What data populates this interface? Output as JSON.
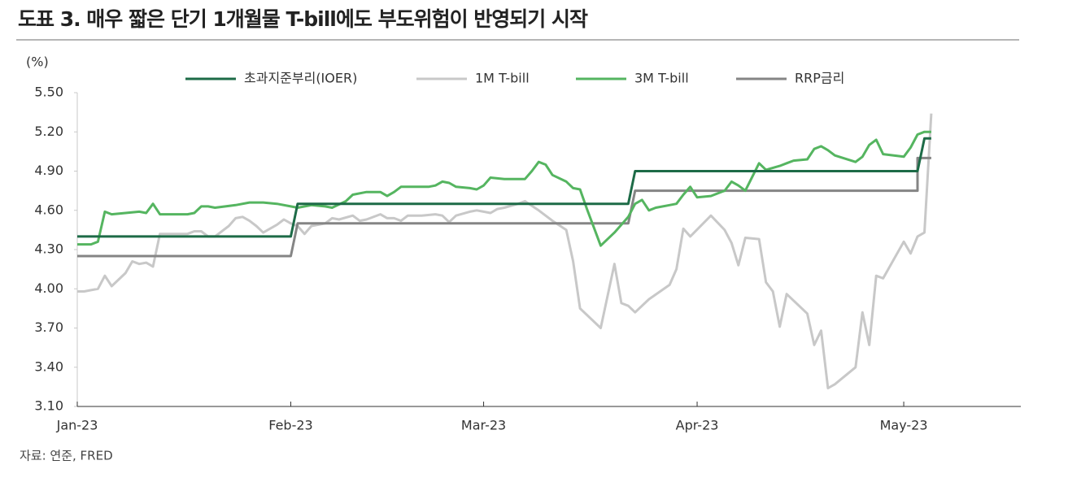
{
  "title": "도표 3. 매우 짧은 단기 1개월물 T-bill에도 부도위험이 반영되기 시작",
  "source": "자료: 연준, FRED",
  "chart_data": {
    "type": "line",
    "y_unit_label": "(%)",
    "xlim": [
      0,
      137
    ],
    "xticks": [
      {
        "value": 0,
        "label": "Jan-23"
      },
      {
        "value": 31,
        "label": "Feb-23"
      },
      {
        "value": 59,
        "label": "Mar-23"
      },
      {
        "value": 90,
        "label": "Apr-23"
      },
      {
        "value": 120,
        "label": "May-23"
      }
    ],
    "ylim": [
      3.1,
      5.5
    ],
    "yticks": [
      {
        "value": 3.1,
        "label": "3.10"
      },
      {
        "value": 3.4,
        "label": "3.40"
      },
      {
        "value": 3.7,
        "label": "3.70"
      },
      {
        "value": 4.0,
        "label": "4.00"
      },
      {
        "value": 4.3,
        "label": "4.30"
      },
      {
        "value": 4.6,
        "label": "4.60"
      },
      {
        "value": 4.9,
        "label": "4.90"
      },
      {
        "value": 5.2,
        "label": "5.20"
      },
      {
        "value": 5.5,
        "label": "5.50"
      }
    ],
    "series": [
      {
        "name": "초과지준부리(IOER)",
        "color": "#1d6b47",
        "x": [
          0,
          31,
          32,
          80,
          81,
          122,
          123,
          124
        ],
        "values": [
          4.4,
          4.4,
          4.65,
          4.65,
          4.9,
          4.9,
          5.15,
          5.15
        ]
      },
      {
        "name": "1M T-bill",
        "color": "#c8c8c8",
        "x": [
          0,
          1,
          2,
          3,
          4,
          5,
          7,
          8,
          9,
          10,
          11,
          12,
          14,
          16,
          17,
          18,
          19,
          20,
          22,
          23,
          24,
          25,
          26,
          27,
          29,
          30,
          31,
          32,
          33,
          34,
          36,
          37,
          38,
          40,
          41,
          42,
          44,
          45,
          46,
          47,
          48,
          50,
          52,
          53,
          54,
          55,
          57,
          58,
          59,
          60,
          61,
          62,
          64,
          65,
          67,
          69,
          71,
          72,
          73,
          76,
          78,
          79,
          80,
          81,
          83,
          86,
          87,
          88,
          89,
          92,
          94,
          95,
          96,
          97,
          99,
          100,
          101,
          102,
          103,
          106,
          107,
          108,
          109,
          110,
          113,
          114,
          115,
          116,
          117,
          120,
          121,
          122,
          123,
          124
        ],
        "values": [
          3.98,
          3.98,
          3.99,
          4.0,
          4.1,
          4.02,
          4.12,
          4.21,
          4.19,
          4.2,
          4.17,
          4.42,
          4.42,
          4.42,
          4.44,
          4.44,
          4.4,
          4.4,
          4.48,
          4.54,
          4.55,
          4.52,
          4.48,
          4.43,
          4.49,
          4.53,
          4.5,
          4.48,
          4.42,
          4.48,
          4.5,
          4.54,
          4.53,
          4.56,
          4.52,
          4.53,
          4.57,
          4.54,
          4.54,
          4.52,
          4.56,
          4.56,
          4.57,
          4.56,
          4.51,
          4.56,
          4.59,
          4.6,
          4.59,
          4.58,
          4.61,
          4.62,
          4.65,
          4.67,
          4.6,
          4.52,
          4.45,
          4.21,
          3.85,
          3.7,
          4.19,
          3.89,
          3.87,
          3.82,
          3.92,
          4.03,
          4.15,
          4.46,
          4.4,
          4.56,
          4.45,
          4.35,
          4.18,
          4.39,
          4.38,
          4.05,
          3.98,
          3.71,
          3.96,
          3.81,
          3.57,
          3.68,
          3.24,
          3.27,
          3.4,
          3.82,
          3.57,
          4.1,
          4.08,
          4.36,
          4.27,
          4.4,
          4.43,
          5.34
        ]
      },
      {
        "name": "3M T-bill",
        "color": "#55b560",
        "x": [
          0,
          2,
          3,
          4,
          5,
          7,
          9,
          10,
          11,
          12,
          14,
          16,
          17,
          18,
          19,
          20,
          23,
          25,
          27,
          29,
          31,
          32,
          34,
          36,
          37,
          39,
          40,
          42,
          44,
          45,
          46,
          47,
          49,
          51,
          52,
          53,
          54,
          55,
          57,
          58,
          59,
          60,
          62,
          64,
          65,
          66,
          67,
          68,
          69,
          71,
          72,
          73,
          74,
          76,
          78,
          80,
          81,
          82,
          83,
          84,
          86,
          87,
          88,
          89,
          90,
          92,
          94,
          95,
          96,
          97,
          99,
          100,
          102,
          103,
          104,
          106,
          107,
          108,
          109,
          110,
          113,
          114,
          115,
          116,
          117,
          120,
          121,
          122,
          123,
          124
        ],
        "values": [
          4.34,
          4.34,
          4.36,
          4.59,
          4.57,
          4.58,
          4.59,
          4.58,
          4.65,
          4.57,
          4.57,
          4.57,
          4.58,
          4.63,
          4.63,
          4.62,
          4.64,
          4.66,
          4.66,
          4.65,
          4.63,
          4.62,
          4.64,
          4.63,
          4.62,
          4.67,
          4.72,
          4.74,
          4.74,
          4.71,
          4.74,
          4.78,
          4.78,
          4.78,
          4.79,
          4.82,
          4.81,
          4.78,
          4.77,
          4.76,
          4.79,
          4.85,
          4.84,
          4.84,
          4.84,
          4.9,
          4.97,
          4.95,
          4.87,
          4.82,
          4.77,
          4.76,
          4.61,
          4.33,
          4.43,
          4.55,
          4.65,
          4.68,
          4.6,
          4.62,
          4.64,
          4.65,
          4.72,
          4.78,
          4.7,
          4.71,
          4.75,
          4.82,
          4.79,
          4.75,
          4.96,
          4.91,
          4.94,
          4.96,
          4.98,
          4.99,
          5.07,
          5.09,
          5.06,
          5.02,
          4.97,
          5.01,
          5.1,
          5.14,
          5.03,
          5.01,
          5.08,
          5.18,
          5.2,
          5.2
        ]
      },
      {
        "name": "RRP금리",
        "color": "#858585",
        "x": [
          0,
          31,
          32,
          80,
          81,
          122,
          122,
          124
        ],
        "values": [
          4.25,
          4.25,
          4.5,
          4.5,
          4.75,
          4.75,
          5.0,
          5.0
        ]
      }
    ]
  }
}
